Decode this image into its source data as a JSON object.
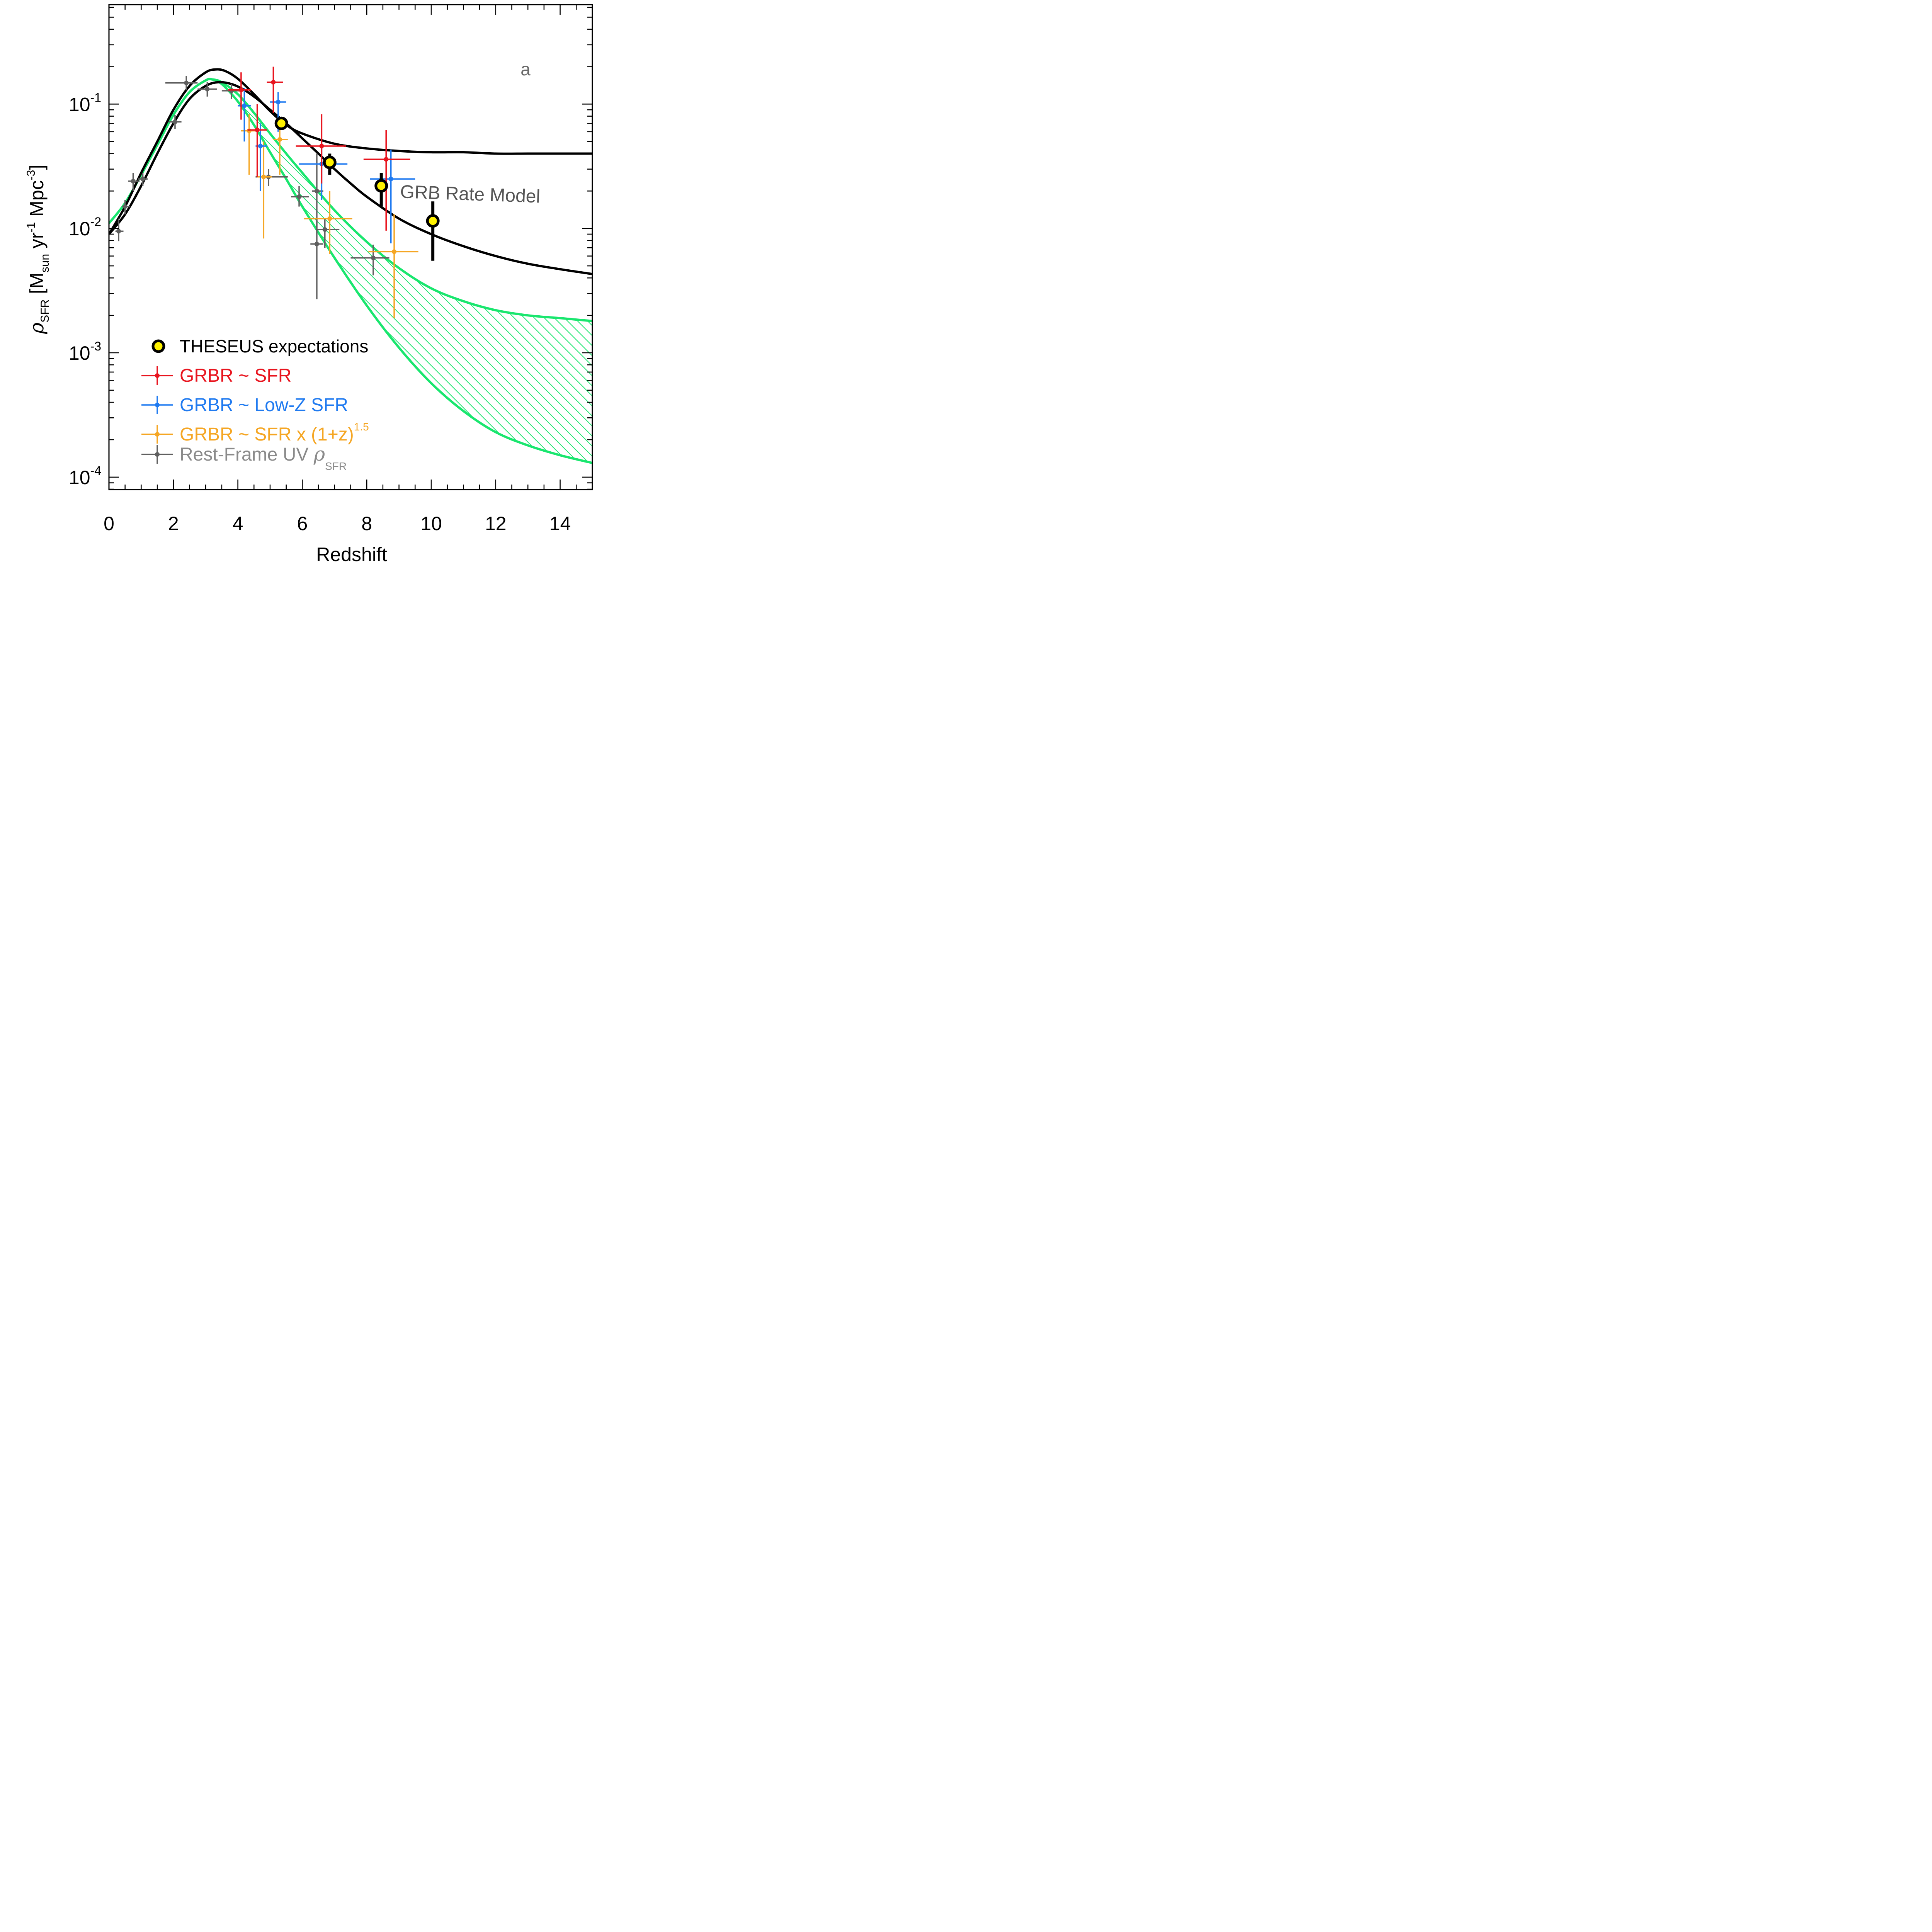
{
  "colors": {
    "red": "#e8141e",
    "blue": "#1f7af0",
    "orange": "#f5a623",
    "gray": "#5f5f5f",
    "green": "#19e66e",
    "black": "#000000",
    "yellow": "#fff200",
    "gray_text": "#8a8a8a"
  },
  "chart_data": {
    "type": "scatter",
    "xlabel": "Redshift",
    "ylabel": {
      "rho": "ρ",
      "rho_sub": "SFR",
      "open": "[M",
      "sun_sub": "sun",
      "yr": "yr",
      "yr_sup": "-1",
      "mpc": "Mpc",
      "mpc_sup": "-3",
      "close": "]"
    },
    "panel_label": "a",
    "model_label": "GRB Rate Model",
    "xlim": [
      0,
      15
    ],
    "ylim_log10": [
      -4.1,
      -0.2
    ],
    "x_ticks": [
      "0",
      "2",
      "4",
      "6",
      "8",
      "10",
      "12",
      "14"
    ],
    "y_ticks": [
      {
        "base": "10",
        "exp": "-1",
        "log": -1
      },
      {
        "base": "10",
        "exp": "-2",
        "log": -2
      },
      {
        "base": "10",
        "exp": "-3",
        "log": -3
      },
      {
        "base": "10",
        "exp": "-4",
        "log": -4
      }
    ],
    "grb_model_upper": {
      "x": [
        0,
        0.5,
        1,
        1.5,
        2,
        2.5,
        3,
        3.3,
        3.6,
        4,
        4.5,
        5,
        5.5,
        6,
        7,
        8,
        9,
        10,
        11,
        12,
        13,
        14,
        15
      ],
      "y": [
        0.009,
        0.015,
        0.028,
        0.05,
        0.09,
        0.14,
        0.18,
        0.19,
        0.185,
        0.16,
        0.12,
        0.088,
        0.068,
        0.058,
        0.048,
        0.044,
        0.042,
        0.041,
        0.041,
        0.04,
        0.04,
        0.04,
        0.04
      ]
    },
    "grb_model_lower": {
      "x": [
        0,
        0.5,
        1,
        1.5,
        2,
        2.5,
        3,
        3.4,
        3.8,
        4.2,
        4.6,
        5,
        5.5,
        6,
        6.5,
        7,
        7.5,
        8,
        9,
        10,
        11,
        12,
        13,
        14,
        15
      ],
      "y": [
        0.009,
        0.013,
        0.022,
        0.04,
        0.07,
        0.11,
        0.14,
        0.15,
        0.145,
        0.13,
        0.11,
        0.09,
        0.07,
        0.053,
        0.04,
        0.03,
        0.023,
        0.018,
        0.012,
        0.009,
        0.0072,
        0.006,
        0.0052,
        0.0047,
        0.0043
      ]
    },
    "sfr_band_upper": {
      "x": [
        0,
        0.5,
        1,
        1.5,
        2,
        2.5,
        3,
        3.2,
        3.5,
        4,
        4.5,
        5,
        5.5,
        6,
        7,
        8,
        9,
        10,
        11,
        12,
        13,
        14,
        15
      ],
      "y": [
        0.011,
        0.016,
        0.027,
        0.047,
        0.082,
        0.125,
        0.155,
        0.158,
        0.15,
        0.12,
        0.085,
        0.058,
        0.04,
        0.028,
        0.014,
        0.0078,
        0.0048,
        0.0033,
        0.0026,
        0.0022,
        0.002,
        0.0019,
        0.0018
      ]
    },
    "sfr_band_lower": {
      "x": [
        0,
        0.5,
        1,
        1.5,
        2,
        2.5,
        3,
        3.2,
        3.5,
        4,
        4.5,
        5,
        5.5,
        6,
        7,
        8,
        9,
        10,
        11,
        12,
        13,
        14,
        15
      ],
      "y": [
        0.011,
        0.016,
        0.027,
        0.047,
        0.082,
        0.125,
        0.155,
        0.158,
        0.145,
        0.105,
        0.068,
        0.041,
        0.025,
        0.015,
        0.0058,
        0.0024,
        0.0011,
        0.00057,
        0.00034,
        0.00023,
        0.00018,
        0.00015,
        0.00013
      ]
    },
    "series": [
      {
        "name": "GRBR ~ SFR",
        "color_key": "red",
        "points": [
          {
            "x": 4.1,
            "y": 0.13,
            "xerr": [
              3.7,
              4.4
            ],
            "yerr": [
              0.075,
              0.18
            ]
          },
          {
            "x": 4.6,
            "y": 0.062,
            "xerr": [
              4.3,
              4.9
            ],
            "yerr": [
              0.026,
              0.1
            ]
          },
          {
            "x": 5.1,
            "y": 0.15,
            "xerr": [
              4.9,
              5.4
            ],
            "yerr": [
              0.085,
              0.2
            ]
          },
          {
            "x": 6.6,
            "y": 0.046,
            "xerr": [
              5.8,
              7.35
            ],
            "yerr": [
              0.023,
              0.083
            ]
          },
          {
            "x": 8.6,
            "y": 0.036,
            "xerr": [
              7.9,
              9.35
            ],
            "yerr": [
              0.0096,
              0.062
            ]
          }
        ]
      },
      {
        "name": "GRBR ~ Low-Z SFR",
        "color_key": "blue",
        "points": [
          {
            "x": 4.2,
            "y": 0.097,
            "xerr": [
              4.0,
              4.4
            ],
            "yerr": [
              0.05,
              0.135
            ]
          },
          {
            "x": 4.7,
            "y": 0.046,
            "xerr": [
              4.55,
              4.9
            ],
            "yerr": [
              0.02,
              0.07
            ]
          },
          {
            "x": 5.25,
            "y": 0.104,
            "xerr": [
              5.0,
              5.5
            ],
            "yerr": [
              0.06,
              0.125
            ]
          },
          {
            "x": 6.6,
            "y": 0.033,
            "xerr": [
              5.9,
              7.4
            ],
            "yerr": [
              0.017,
              0.049
            ]
          },
          {
            "x": 8.75,
            "y": 0.025,
            "xerr": [
              8.1,
              9.5
            ],
            "yerr": [
              0.0076,
              0.043
            ]
          }
        ]
      },
      {
        "name": "GRBR ~ SFR x (1+z)",
        "name_sup": "1.5",
        "color_key": "orange",
        "points": [
          {
            "x": 4.35,
            "y": 0.061,
            "xerr": [
              4.1,
              4.6
            ],
            "yerr": [
              0.027,
              0.083
            ]
          },
          {
            "x": 4.8,
            "y": 0.026,
            "xerr": [
              4.6,
              5.05
            ],
            "yerr": [
              0.0083,
              0.05
            ]
          },
          {
            "x": 5.3,
            "y": 0.052,
            "xerr": [
              5.1,
              5.55
            ],
            "yerr": [
              0.027,
              0.065
            ]
          },
          {
            "x": 6.85,
            "y": 0.012,
            "xerr": [
              6.05,
              7.55
            ],
            "yerr": [
              0.0062,
              0.02
            ]
          },
          {
            "x": 8.85,
            "y": 0.0065,
            "xerr": [
              8.05,
              9.6
            ],
            "yerr": [
              0.0019,
              0.013
            ]
          }
        ]
      },
      {
        "name": "Rest-Frame UV",
        "name_rho": "ρ",
        "name_sub": "SFR",
        "color_key": "gray",
        "points": [
          {
            "x": 0.3,
            "y": 0.0095,
            "xerr": [
              0.2,
              0.45
            ],
            "yerr": [
              0.0079,
              0.012
            ]
          },
          {
            "x": 0.5,
            "y": 0.015,
            "xerr": [
              0.4,
              0.65
            ],
            "yerr": [
              0.013,
              0.017
            ]
          },
          {
            "x": 0.75,
            "y": 0.024,
            "xerr": [
              0.6,
              0.95
            ],
            "yerr": [
              0.02,
              0.028
            ]
          },
          {
            "x": 1.05,
            "y": 0.025,
            "xerr": [
              0.9,
              1.2
            ],
            "yerr": [
              0.022,
              0.028
            ]
          },
          {
            "x": 2.05,
            "y": 0.072,
            "xerr": [
              1.85,
              2.25
            ],
            "yerr": [
              0.063,
              0.082
            ]
          },
          {
            "x": 2.4,
            "y": 0.148,
            "xerr": [
              1.75,
              2.75
            ],
            "yerr": [
              0.13,
              0.168
            ]
          },
          {
            "x": 3.05,
            "y": 0.132,
            "xerr": [
              2.75,
              3.35
            ],
            "yerr": [
              0.115,
              0.15
            ]
          },
          {
            "x": 3.8,
            "y": 0.128,
            "xerr": [
              3.5,
              4.1
            ],
            "yerr": [
              0.11,
              0.145
            ]
          },
          {
            "x": 4.95,
            "y": 0.026,
            "xerr": [
              4.55,
              5.55
            ],
            "yerr": [
              0.022,
              0.03
            ]
          },
          {
            "x": 5.9,
            "y": 0.018,
            "xerr": [
              5.65,
              6.2
            ],
            "yerr": [
              0.015,
              0.022
            ]
          },
          {
            "x": 6.45,
            "y": 0.02,
            "xerr": [
              6.3,
              6.65
            ],
            "yerr": [
              0.0095,
              0.04
            ]
          },
          {
            "x": 6.45,
            "y": 0.0075,
            "xerr": [
              6.25,
              6.65
            ],
            "yerr": [
              0.0027,
              0.012
            ]
          },
          {
            "x": 6.7,
            "y": 0.0098,
            "xerr": [
              6.45,
              7.15
            ],
            "yerr": [
              0.007,
              0.012
            ]
          },
          {
            "x": 8.2,
            "y": 0.0058,
            "xerr": [
              7.5,
              8.7
            ],
            "yerr": [
              0.0042,
              0.0074
            ]
          }
        ]
      },
      {
        "name": "THESEUS expectations",
        "color_key": "yellow",
        "points": [
          {
            "x": 5.35,
            "y": 0.07,
            "yerr": [
              0.066,
              0.074
            ]
          },
          {
            "x": 6.85,
            "y": 0.034,
            "yerr": [
              0.027,
              0.04
            ]
          },
          {
            "x": 8.45,
            "y": 0.022,
            "xerr": [
              8.45,
              8.45
            ],
            "yerr": [
              0.015,
              0.028
            ]
          },
          {
            "x": 10.05,
            "y": 0.0115,
            "yerr": [
              0.0055,
              0.0165
            ]
          }
        ]
      }
    ]
  }
}
